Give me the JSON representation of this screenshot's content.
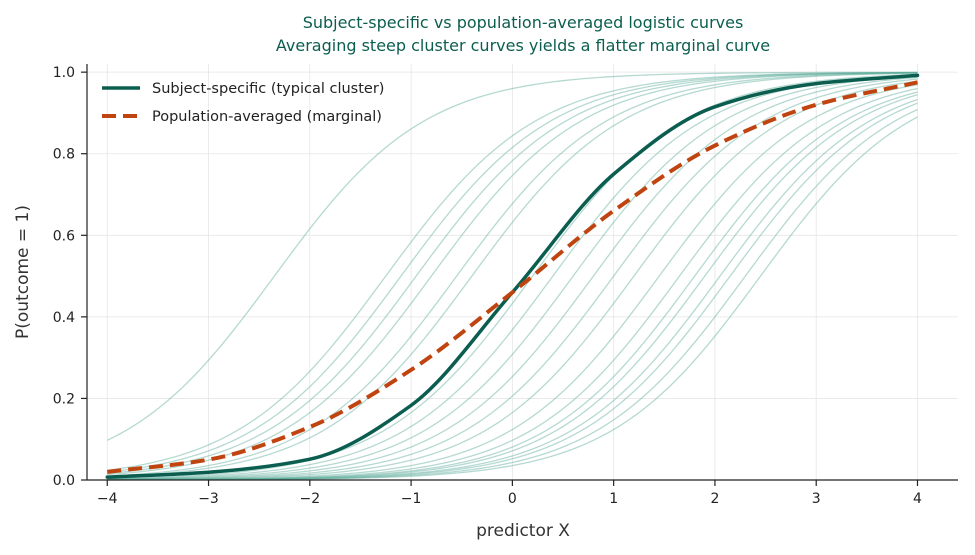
{
  "chart_data": {
    "type": "line",
    "title": "Subject-specific vs population-averaged logistic curves",
    "subtitle": "Averaging steep cluster curves yields a flatter marginal curve",
    "xlabel": "predictor X",
    "ylabel": "P(outcome = 1)",
    "xlim": [
      -4.2,
      4.4
    ],
    "ylim": [
      0,
      1.02
    ],
    "xticks": [
      -4,
      -3,
      -2,
      -1,
      0,
      1,
      2,
      3,
      4
    ],
    "yticks": [
      "0.0",
      "0.2",
      "0.4",
      "0.6",
      "0.8",
      "1.0"
    ],
    "yticks_values": [
      0,
      0.2,
      0.4,
      0.6,
      0.8,
      1.0
    ],
    "grid": true,
    "legend_position": "top-left",
    "slope": 1.35,
    "cluster_midpoints": [
      -2.35,
      -1.25,
      -1.1,
      -0.95,
      -0.8,
      -0.55,
      -0.4,
      0.2,
      0.4,
      0.6,
      0.8,
      1.0,
      1.2,
      1.45,
      1.65,
      1.8,
      1.9,
      2.05,
      2.15,
      2.3,
      2.45
    ],
    "series": [
      {
        "name": "Subject-specific (typical cluster)",
        "x": [
          -4,
          -3,
          -2,
          -1,
          0,
          1,
          2,
          3,
          4
        ],
        "y": [
          0.007,
          0.019,
          0.051,
          0.183,
          0.46,
          0.75,
          0.915,
          0.972,
          0.992
        ]
      },
      {
        "name": "Population-averaged (marginal)",
        "x": [
          -4,
          -3,
          -2,
          -1,
          0,
          1,
          2,
          3,
          4
        ],
        "y": [
          0.02,
          0.05,
          0.13,
          0.27,
          0.46,
          0.66,
          0.82,
          0.92,
          0.975
        ]
      }
    ]
  },
  "colors": {
    "cluster": "#5aab9a",
    "subject": "#0b5e4f",
    "marginal": "#c0440f",
    "title": "#0b5e4f"
  }
}
